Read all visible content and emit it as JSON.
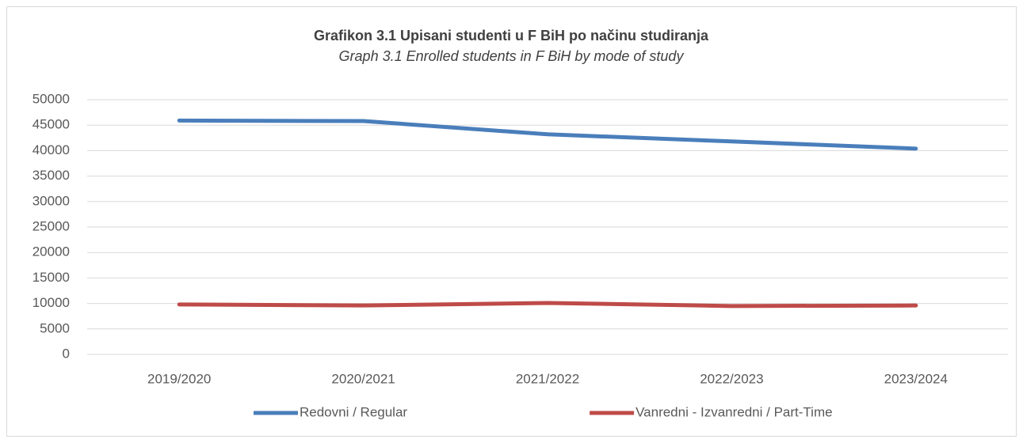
{
  "chart_data": {
    "type": "line",
    "title": "Grafikon 3.1 Upisani studenti u F BiH po načinu studiranja",
    "subtitle": "Graph 3.1 Enrolled students in F BiH by mode of study",
    "categories": [
      "2019/2020",
      "2020/2021",
      "2021/2022",
      "2022/2023",
      "2023/2024"
    ],
    "series": [
      {
        "name": "Redovni / Regular",
        "color": "#4a7ebb",
        "values": [
          45900,
          45800,
          43200,
          41800,
          40400
        ]
      },
      {
        "name": "Vanredni - Izvanredni / Part-Time",
        "color": "#be4b48",
        "values": [
          9800,
          9600,
          10100,
          9500,
          9600
        ]
      }
    ],
    "ylim": [
      0,
      50000
    ],
    "yticks": [
      0,
      5000,
      10000,
      15000,
      20000,
      25000,
      30000,
      35000,
      40000,
      45000,
      50000
    ],
    "grid": true,
    "legend": "bottom"
  }
}
